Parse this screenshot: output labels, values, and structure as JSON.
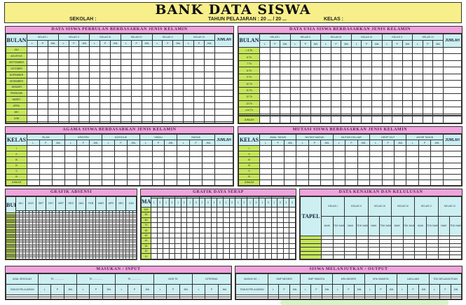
{
  "header": {
    "title": "BANK DATA SISWA",
    "school_label": "SEKOLAH :",
    "year_label": "TAHUN PELAJARAN : 20 ... / 20 ...",
    "class_label": "KELAS :"
  },
  "colors": {
    "title_band": "#f7ef8a",
    "section_title": "#f0a3dc",
    "header_cell": "#cdeff2",
    "row_label": "#c6e65a"
  },
  "monthly": {
    "title": "DATA SISWA PERBULAN BERDASARKAN JENIS KELAMIN",
    "row_header": "BULAN",
    "groups": [
      "KELAS I",
      "KELAS II",
      "KELAS III",
      "KELAS IV",
      "KELAS V",
      "KELAS VI"
    ],
    "subs": [
      "L",
      "P",
      "JML"
    ],
    "total": "JUMLAH",
    "rows": [
      "JULI",
      "AGUSTUS",
      "SEPTEMBER",
      "OKTOBER",
      "NOPEMBER",
      "DESEMBER",
      "JANUARI",
      "PEBRUARI",
      "MARET",
      "APRIL",
      "MEI",
      "JUNI",
      ""
    ]
  },
  "age": {
    "title": "DATA USIA SISWA BERDASARKAN JENIS KELAMIN",
    "row_header": "BULAN",
    "groups": [
      "KELAS I",
      "KELAS II",
      "KELAS III",
      "KELAS IV",
      "KELAS V",
      "KELAS VI"
    ],
    "subs": [
      "L",
      "P",
      "JML"
    ],
    "total": "JUMLAH",
    "rows": [
      "< 6 Th",
      "6 Th",
      "7 Th",
      "8 Th",
      "9 Th",
      "10 Th",
      "11 Th",
      "12 Th",
      "13 Th",
      "≥14 Th",
      "",
      "",
      "JUMLAH"
    ]
  },
  "religion": {
    "title": "AGAMA SISWA BERDASARKAN JENIS KELAMIN",
    "row_header": "KELAS",
    "groups": [
      "ISLAM",
      "KRISTEN",
      "KATHOLIK",
      "HINDU",
      "BUDHA"
    ],
    "subs": [
      "L",
      "P",
      "JML"
    ],
    "total": "JUMLAH",
    "rows": [
      "I",
      "II",
      "III",
      "IV",
      "V",
      "VI",
      "JUMLAH"
    ]
  },
  "mutation": {
    "title": "MUTASI SISWA BERDASARKAN JENIS KELAMIN",
    "row_header": "KELAS",
    "groups": [
      "AWAL TAHUN",
      "MUTASI MASUK",
      "MUTASI KELUAR",
      "DROP OUT",
      "AKHIR TAHUN"
    ],
    "subs": [
      "L",
      "P",
      "JML"
    ],
    "total": "JUMLAH",
    "rows": [
      "I",
      "II",
      "III",
      "IV",
      "V",
      "VI",
      "JUMLAH"
    ]
  },
  "attendance": {
    "title": "GRAFIK ABSENSI",
    "row_header": "BULAN",
    "groups": [
      "JULI",
      "AGS",
      "SEP",
      "OKT",
      "NOP",
      "DES",
      "JAN",
      "FEB",
      "MAR",
      "APR",
      "MEI",
      "JUN"
    ],
    "subs": [
      "",
      "",
      ""
    ],
    "rows": [
      "",
      "",
      "",
      "",
      "",
      "",
      "",
      "",
      "",
      "",
      "",
      "",
      "",
      ""
    ]
  },
  "absorption": {
    "title": "GRAFIK DAYA SERAP",
    "row_header": "MAPEL",
    "groups": [
      "",
      "",
      "",
      "",
      "",
      "",
      "",
      "",
      "",
      "",
      "",
      ""
    ],
    "subs": [
      "1",
      "0"
    ],
    "rows": [
      "100",
      "90",
      "80",
      "70",
      "60",
      "50",
      "40",
      "30",
      "20",
      "10"
    ]
  },
  "promotion": {
    "title": "DATA KENAIKAN DAN KELULUSAN",
    "row_header": "TAPEL",
    "groups": [
      "KELAS I",
      "KELAS II",
      "KELAS III",
      "KELAS IV",
      "KELAS V",
      "KELAS VI"
    ],
    "subs": [
      "NAIK",
      "TDK NAIK"
    ],
    "rows": [
      "",
      "",
      "",
      "",
      "",
      ""
    ]
  },
  "input": {
    "title": "MASUKAN / INPUT",
    "row_header": [
      "ASAL SEKOLAH",
      "TAHUN PELAJARAN"
    ],
    "groups": [
      "TK ..............",
      "TK ..............",
      "TK ..............",
      "NON TK",
      "DITERIMA"
    ],
    "subs": [
      "L",
      "P",
      "JML"
    ],
    "rows": [
      "",
      ""
    ]
  },
  "output": {
    "title": "SISWA MELANJUTKAN / OUTPUT",
    "row_header": [
      "MASUK KE ...",
      "TAHUN PELAJARAN"
    ],
    "groups": [
      "SMP NEGERI",
      "SMP SWASTA",
      "MTs NEGERI",
      "MTs SWASTA",
      "LAIN-LAIN",
      "TDK MELANJUTKAN"
    ],
    "subs": [
      "L",
      "P",
      "JML"
    ],
    "rows": [
      "",
      ""
    ]
  }
}
